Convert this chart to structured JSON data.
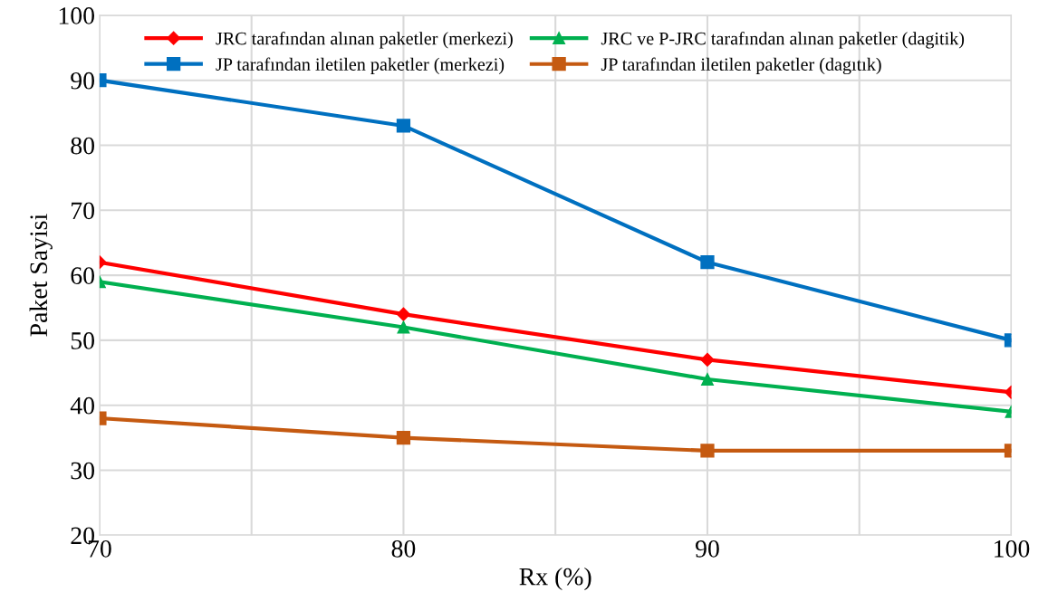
{
  "chart_data": {
    "type": "line",
    "xlabel": "Rx (%)",
    "ylabel": "Paket Sayisi",
    "x": [
      70,
      80,
      90,
      100
    ],
    "series": [
      {
        "name": "JRC tarafından alınan paketler (merkezi)",
        "color": "#ff0000",
        "marker": "diamond",
        "values": [
          62,
          54,
          47,
          42
        ]
      },
      {
        "name": "JP tarafından iletilen paketler (merkezi)",
        "color": "#0070c0",
        "marker": "square",
        "values": [
          90,
          83,
          62,
          50
        ]
      },
      {
        "name": "JRC ve P-JRC tarafından alınan paketler (dagitik)",
        "color": "#00b050",
        "marker": "triangle",
        "values": [
          59,
          52,
          44,
          39
        ]
      },
      {
        "name": "JP tarafından iletilen paketler (dagıtık)",
        "color": "#c55a11",
        "marker": "square",
        "values": [
          38,
          35,
          33,
          33
        ]
      }
    ],
    "xlim": [
      70,
      100
    ],
    "xticks": [
      70,
      {
        "value": 75,
        "label": null
      },
      80,
      {
        "value": 85,
        "label": null
      },
      90,
      {
        "value": 95,
        "label": null
      },
      100
    ],
    "ylim": [
      20,
      100
    ],
    "yticks": [
      20,
      30,
      40,
      50,
      60,
      70,
      80,
      90,
      100
    ],
    "grid": true,
    "legend": "top",
    "line_style": "solid"
  }
}
